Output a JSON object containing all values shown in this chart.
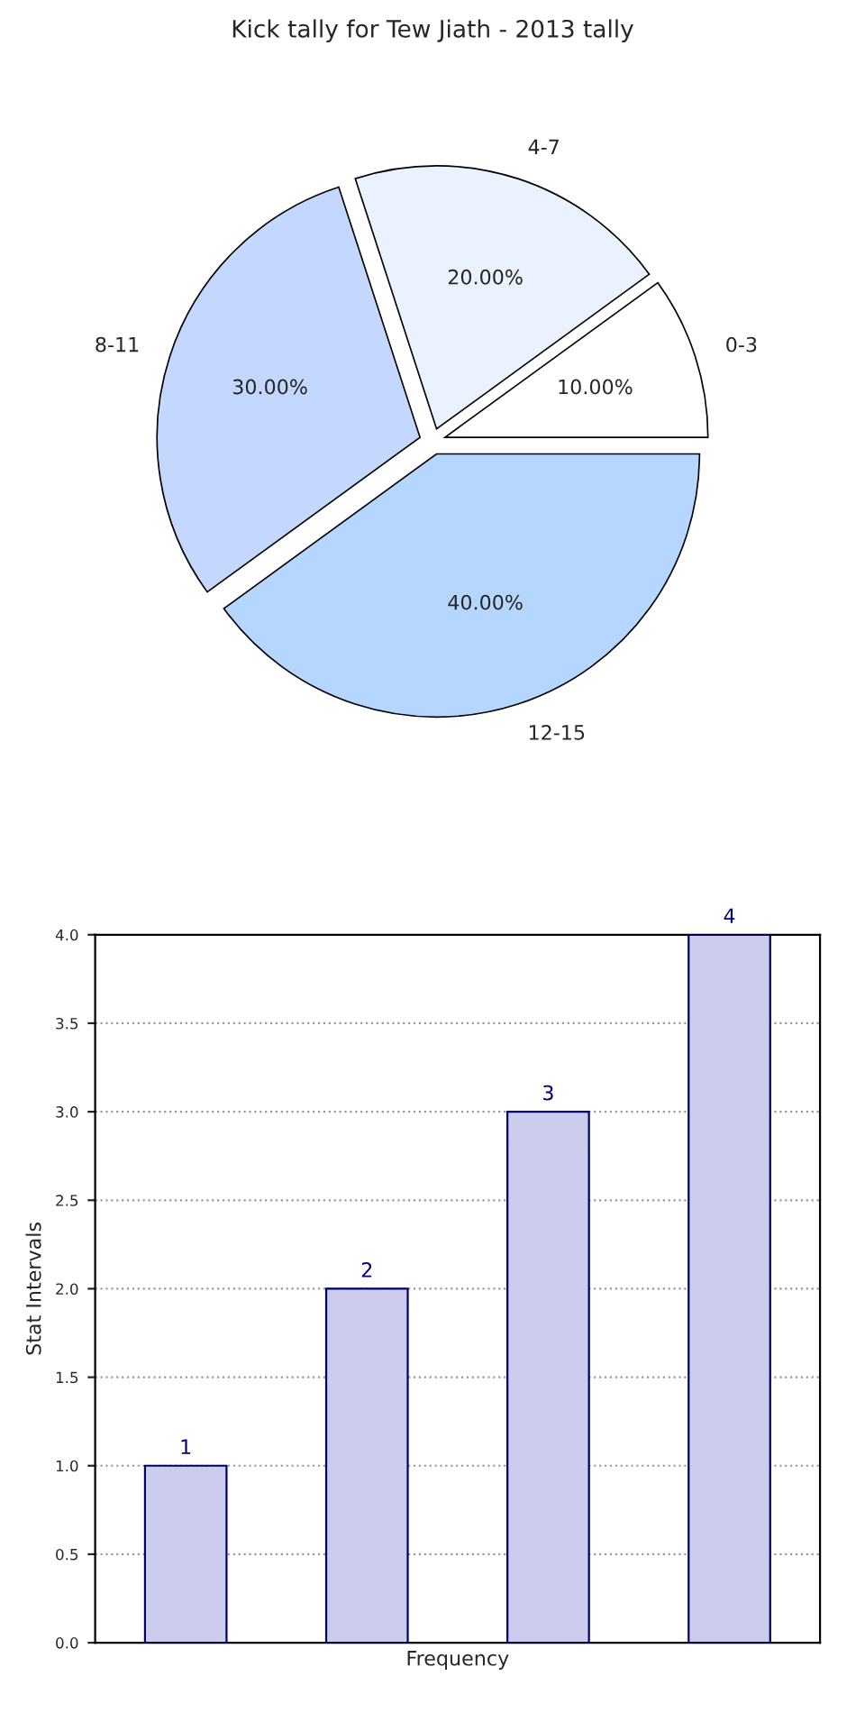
{
  "chart_data": [
    {
      "type": "pie",
      "title": "Kick tally for Tew Jiath - 2013 tally",
      "categories": [
        "0-3",
        "4-7",
        "8-11",
        "12-15"
      ],
      "values": [
        10,
        20,
        30,
        40
      ],
      "colors": [
        "#ffffff",
        "#eaf1ff",
        "#c4d8ff",
        "#b4d6ff"
      ],
      "value_labels": [
        "10.00%",
        "20.00%",
        "30.00%",
        "40.00%"
      ]
    },
    {
      "type": "bar",
      "categories": [
        null,
        null,
        null,
        null
      ],
      "values": [
        1,
        2,
        3,
        4
      ],
      "color": "#ccccee",
      "xlabel": "Frequency",
      "ylabel": "Stat Intervals",
      "ylim": [
        0,
        4
      ],
      "yticks": [
        {
          "value": 0,
          "label": "0.0"
        },
        0.5,
        {
          "value": 1,
          "label": "1.0"
        },
        1.5,
        {
          "value": 2,
          "label": "2.0"
        },
        2.5,
        {
          "value": 3,
          "label": "3.0"
        },
        3.5,
        {
          "value": 4,
          "label": "4.0"
        }
      ],
      "grid": "y",
      "data_labels": true,
      "tick_labels": "y"
    }
  ]
}
